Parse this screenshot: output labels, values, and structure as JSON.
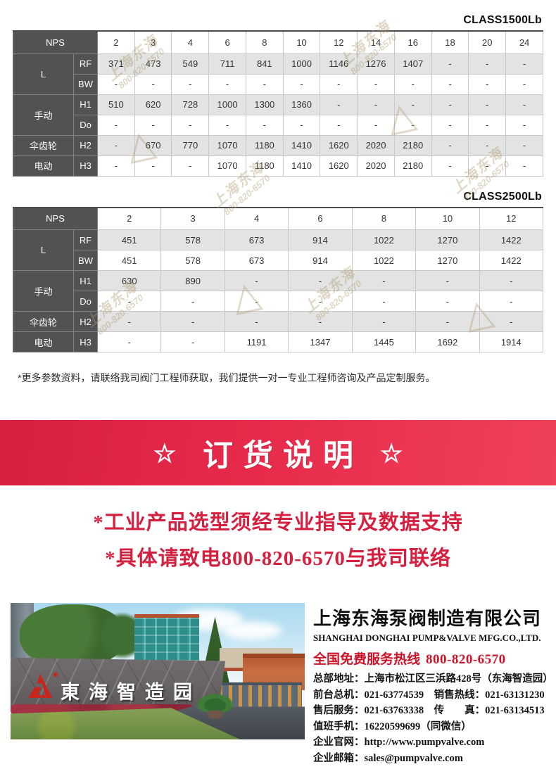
{
  "colors": {
    "banner_red": "#e72a4b",
    "notice_red": "#d5203f",
    "hotline_red": "#ce1228",
    "table_header_dark": "#525254",
    "row_shade_gray": "#e3e3e3",
    "logo_red": "#c8251d"
  },
  "watermark": {
    "name": "上海东海",
    "phone": "800-820-6570",
    "triangle": "△"
  },
  "tables": [
    {
      "title": "CLASS1500Lb",
      "nps_label": "NPS",
      "columns": [
        "2",
        "3",
        "4",
        "6",
        "8",
        "10",
        "12",
        "14",
        "16",
        "18",
        "20",
        "24"
      ],
      "row_groups": [
        {
          "label": "L",
          "rows": [
            {
              "sub": "RF",
              "values": [
                "371",
                "473",
                "549",
                "711",
                "841",
                "1000",
                "1146",
                "1276",
                "1407",
                "-",
                "-",
                "-"
              ]
            },
            {
              "sub": "BW",
              "values": [
                "-",
                "-",
                "-",
                "-",
                "-",
                "-",
                "-",
                "-",
                "-",
                "-",
                "-",
                "-"
              ]
            }
          ]
        },
        {
          "label": "手动",
          "rows": [
            {
              "sub": "H1",
              "values": [
                "510",
                "620",
                "728",
                "1000",
                "1300",
                "1360",
                "-",
                "-",
                "-",
                "-",
                "-",
                "-"
              ]
            },
            {
              "sub": "Do",
              "values": [
                "-",
                "-",
                "-",
                "-",
                "-",
                "-",
                "-",
                "-",
                "-",
                "-",
                "-",
                "-"
              ]
            }
          ]
        },
        {
          "label": "伞齿轮",
          "rows": [
            {
              "sub": "H2",
              "values": [
                "-",
                "670",
                "770",
                "1070",
                "1180",
                "1410",
                "1620",
                "2020",
                "2180",
                "-",
                "-",
                "-"
              ]
            }
          ]
        },
        {
          "label": "电动",
          "rows": [
            {
              "sub": "H3",
              "values": [
                "-",
                "-",
                "-",
                "1070",
                "1180",
                "1410",
                "1620",
                "2020",
                "2180",
                "-",
                "-",
                "-"
              ]
            }
          ]
        }
      ]
    },
    {
      "title": "CLASS2500Lb",
      "nps_label": "NPS",
      "columns": [
        "2",
        "3",
        "4",
        "6",
        "8",
        "10",
        "12"
      ],
      "row_groups": [
        {
          "label": "L",
          "rows": [
            {
              "sub": "RF",
              "values": [
                "451",
                "578",
                "673",
                "914",
                "1022",
                "1270",
                "1422"
              ]
            },
            {
              "sub": "BW",
              "values": [
                "451",
                "578",
                "673",
                "914",
                "1022",
                "1270",
                "1422"
              ]
            }
          ]
        },
        {
          "label": "手动",
          "rows": [
            {
              "sub": "H1",
              "values": [
                "630",
                "890",
                "-",
                "-",
                "-",
                "-",
                "-"
              ]
            },
            {
              "sub": "Do",
              "values": [
                "-",
                "-",
                "-",
                "-",
                "-",
                "-",
                "-"
              ]
            }
          ]
        },
        {
          "label": "伞齿轮",
          "rows": [
            {
              "sub": "H2",
              "values": [
                "-",
                "-",
                "-",
                "-",
                "-",
                "-",
                "-"
              ]
            }
          ]
        },
        {
          "label": "电动",
          "rows": [
            {
              "sub": "H3",
              "values": [
                "-",
                "-",
                "1191",
                "1347",
                "1445",
                "1692",
                "1914"
              ]
            }
          ]
        }
      ]
    }
  ],
  "note": "*更多参数资料，请联络我司阀门工程师获取，我们提供一对一专业工程师咨询及产品定制服务。",
  "banner": {
    "star": "☆",
    "title": "订货说明"
  },
  "notices": [
    "*工业产品选型须经专业指导及数据支持",
    "*具体请致电800-820-6570与我司联络"
  ],
  "photo": {
    "sign": "東海智造园"
  },
  "company": {
    "name_cn": "上海东海泵阀制造有限公司",
    "name_en": "SHANGHAI DONGHAI PUMP&VALVE MFG.CO.,LTD.",
    "hotline_label": "全国免费服务热线",
    "hotline_number": "800-820-6570",
    "lines": [
      "总部地址：上海市松江区三浜路428号（东海智造园）",
      "前台总机：021-63774539　销售热线：021-63131230",
      "售后服务：021-63763338　传　　真：021-63134513",
      "值班手机：16220599699（同微信）",
      "企业官网：http://www.pumpvalve.com",
      "企业邮箱：sales@pumpvalve.com"
    ]
  }
}
